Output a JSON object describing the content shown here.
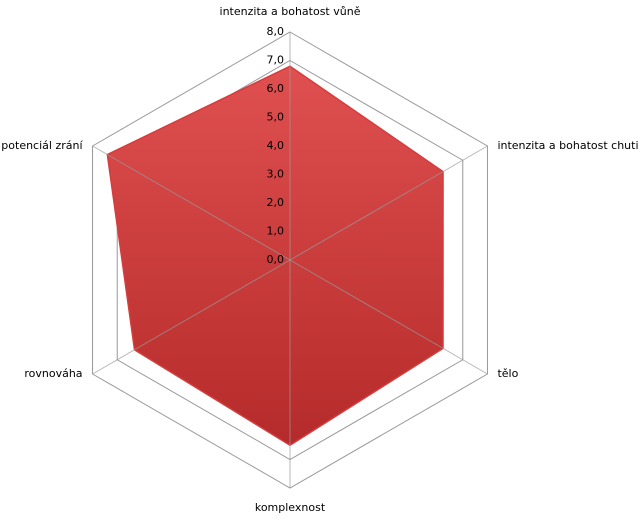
{
  "chart_data": {
    "type": "radar",
    "categories": [
      "intenzita a bohatost vůně",
      "intenzita a bohatost chuti",
      "tělo",
      "komplexnost",
      "rovnováha",
      "potenciál zrání"
    ],
    "series": [
      {
        "color": "#d63c3c",
        "values": [
          6.8,
          6.2,
          6.2,
          6.5,
          6.3,
          7.4
        ]
      }
    ],
    "ylim": [
      0,
      8
    ],
    "yticks": [
      {
        "value": 0,
        "label": "0,0"
      },
      {
        "value": 1,
        "label": "1,0"
      },
      {
        "value": 2,
        "label": "2,0"
      },
      {
        "value": 3,
        "label": "3,0"
      },
      {
        "value": 4,
        "label": "4,0"
      },
      {
        "value": 5,
        "label": "5,0"
      },
      {
        "value": 6,
        "label": "6,0"
      },
      {
        "value": 7,
        "label": "7,0"
      },
      {
        "value": 8,
        "label": "8,0"
      }
    ],
    "grid": true
  }
}
